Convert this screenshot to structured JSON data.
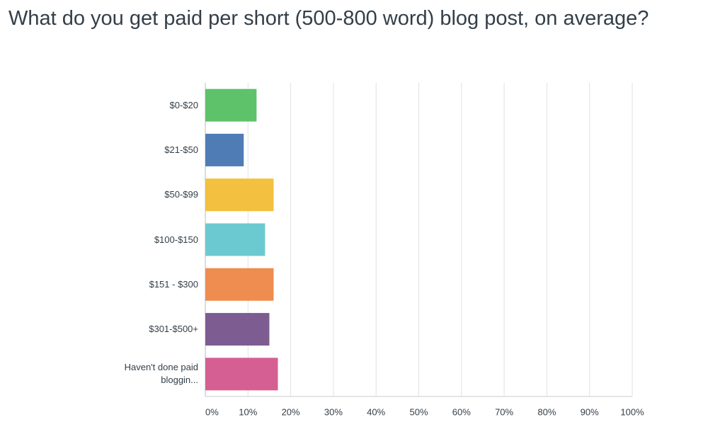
{
  "chart_data": {
    "type": "bar",
    "orientation": "horizontal",
    "title": "What do you get paid per short (500-800 word) blog post, on average?",
    "categories": [
      "$0-$20",
      "$21-$50",
      "$50-$99",
      "$100-$150",
      "$151 - $300",
      "$301-$500+",
      "Haven't done paid bloggin..."
    ],
    "values": [
      12,
      9,
      16,
      14,
      16,
      15,
      17
    ],
    "colors": [
      "#5dc26a",
      "#507cb6",
      "#f3c03f",
      "#6bcad0",
      "#ef8c4f",
      "#7d5c91",
      "#d55f92"
    ],
    "xlim": [
      0,
      100
    ],
    "xticks": [
      {
        "value": 0,
        "label": "0%"
      },
      {
        "value": 10,
        "label": "10%"
      },
      {
        "value": 20,
        "label": "20%"
      },
      {
        "value": 30,
        "label": "30%"
      },
      {
        "value": 40,
        "label": "40%"
      },
      {
        "value": 50,
        "label": "50%"
      },
      {
        "value": 60,
        "label": "60%"
      },
      {
        "value": 70,
        "label": "70%"
      },
      {
        "value": 80,
        "label": "80%"
      },
      {
        "value": 90,
        "label": "90%"
      },
      {
        "value": 100,
        "label": "100%"
      }
    ],
    "grid": true
  }
}
